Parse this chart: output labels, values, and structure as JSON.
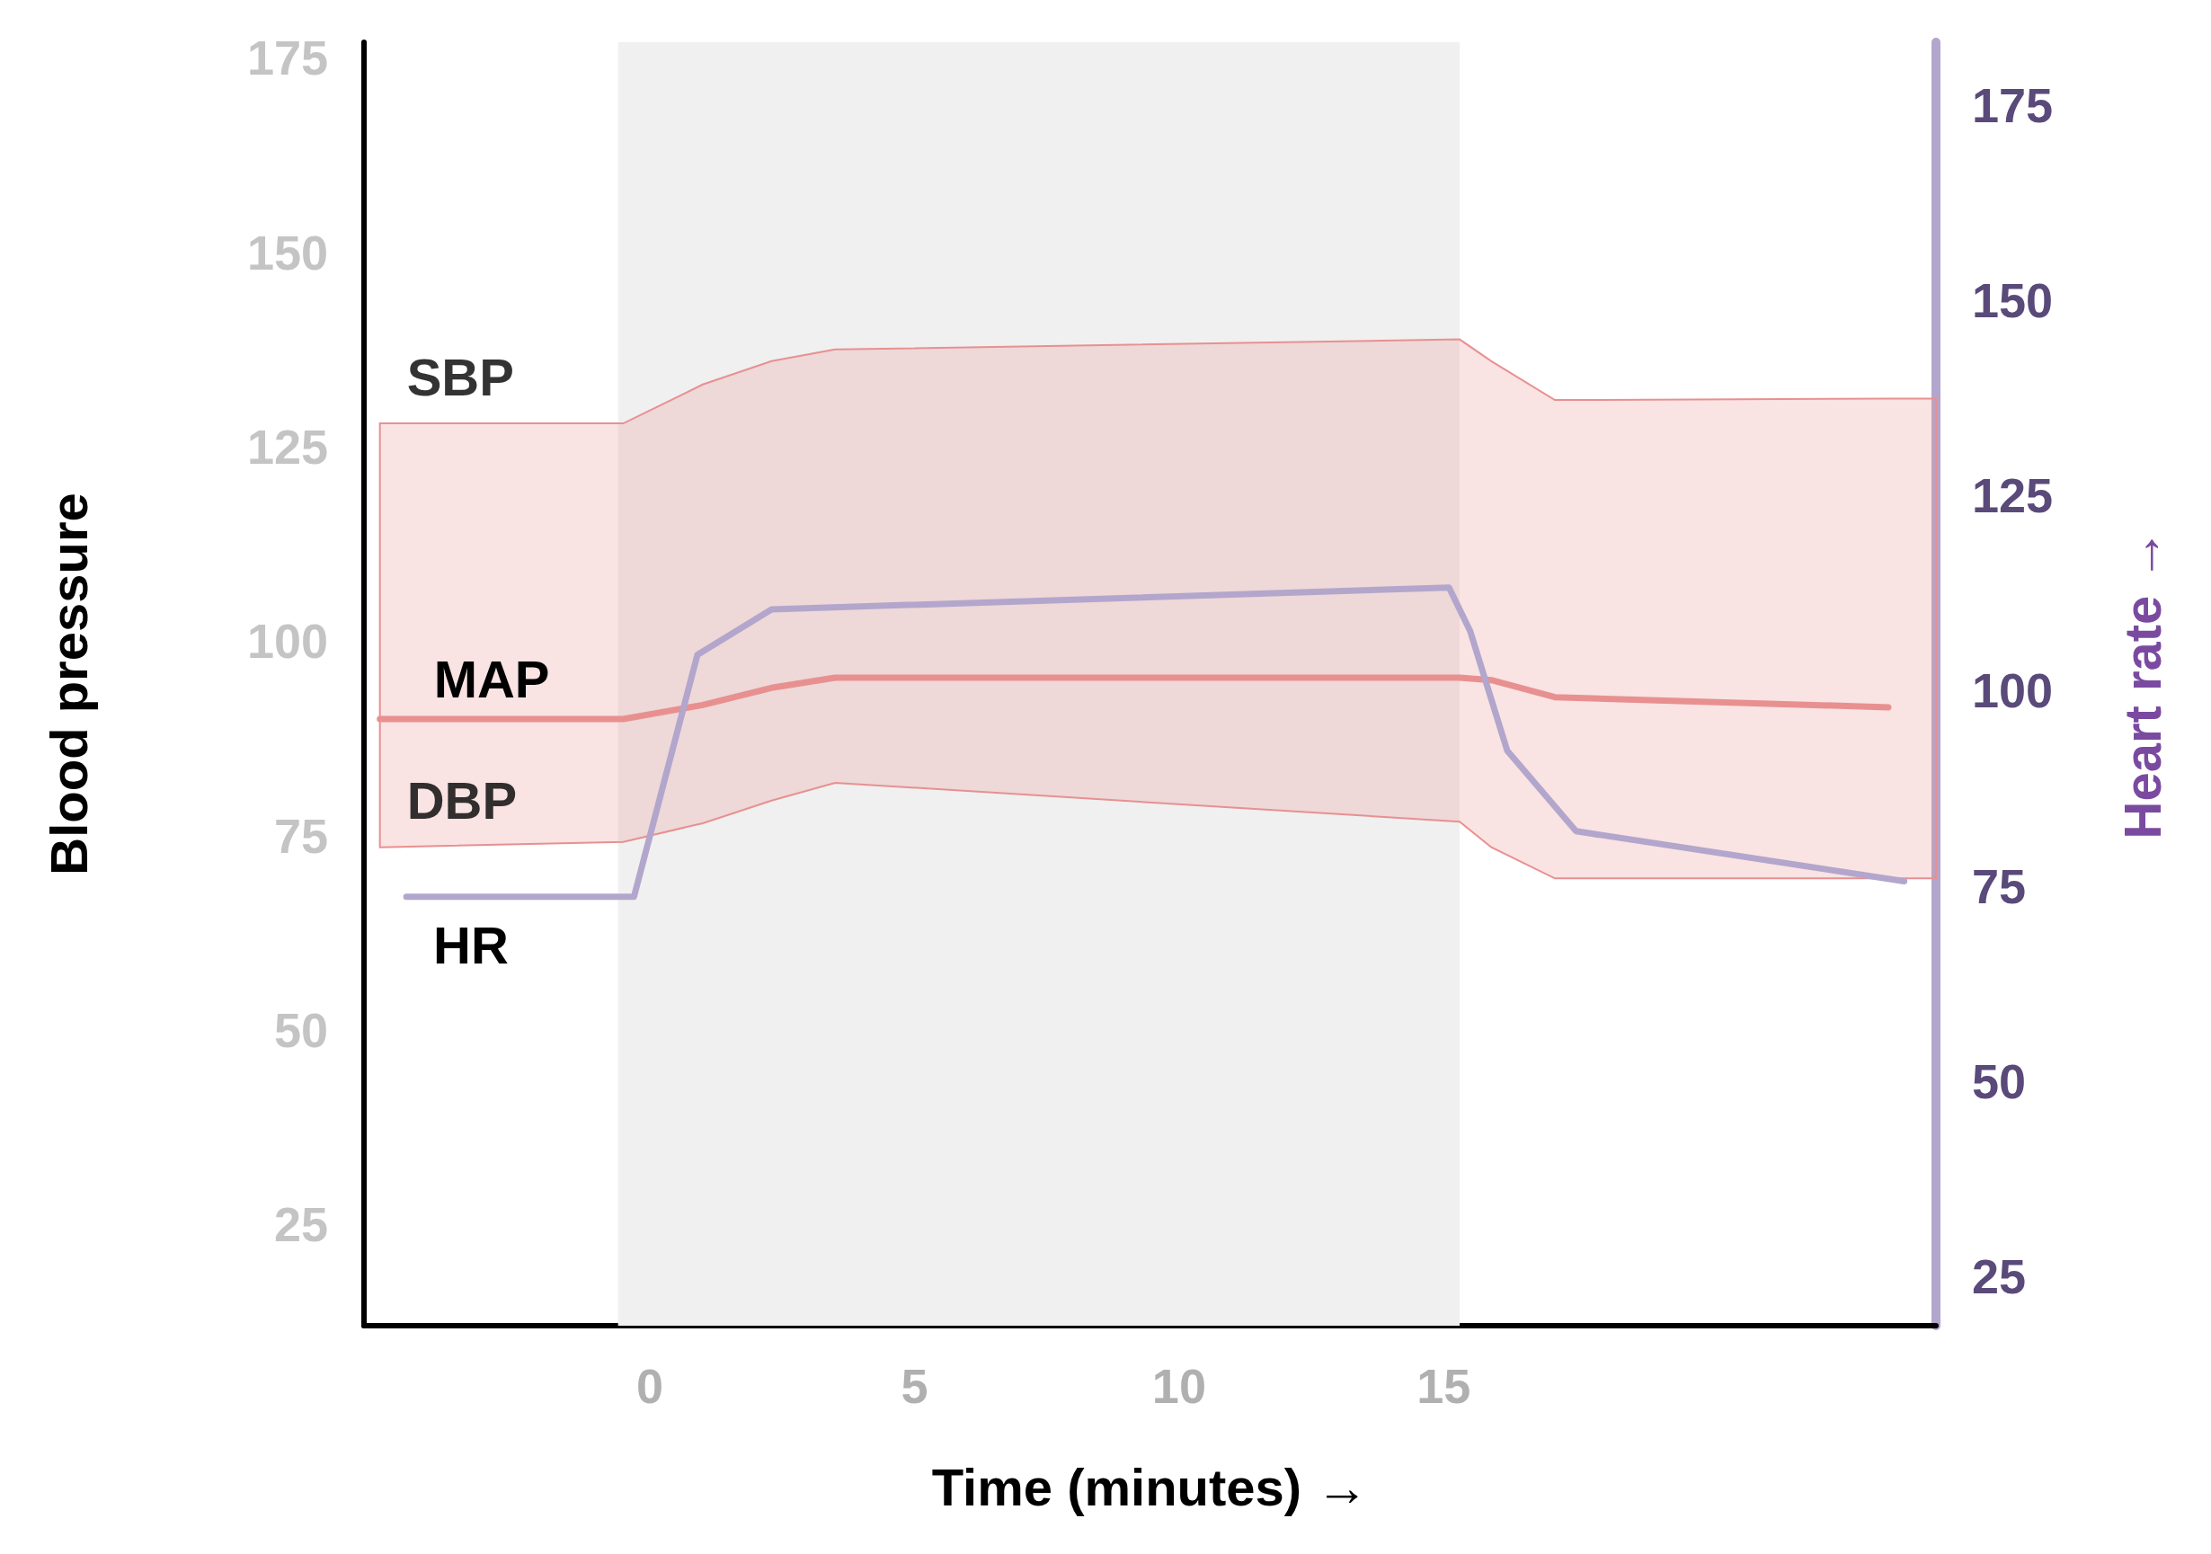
{
  "chart_data": {
    "type": "line",
    "xlabel": "Time (minutes) →",
    "ylabel": "Blood pressure",
    "y2label": "Heart rate →",
    "xlim": [
      -5.4,
      24.3
    ],
    "xticks": [
      0,
      5,
      10,
      15
    ],
    "ylim": [
      12,
      177
    ],
    "yticks": [
      25,
      50,
      75,
      100,
      125,
      150,
      175
    ],
    "y2lim": [
      18.7,
      183
    ],
    "y2ticks": [
      25,
      50,
      75,
      100,
      125,
      150,
      175
    ],
    "grid": false,
    "legend": false,
    "bands": [
      {
        "axis": "x",
        "from": -0.6,
        "to": 15.3,
        "color": "#f0f0f0"
      }
    ],
    "annotations": [
      {
        "text": "SBP",
        "x": -5.1,
        "y": 128
      },
      {
        "text": "DBP",
        "x": -5.1,
        "y": 73.5
      }
    ],
    "series": [
      {
        "name": "MAP",
        "color": "#e89090",
        "x": [
          -5.1,
          -0.5,
          1,
          2.3,
          3.5,
          15.3,
          15.9,
          17.1,
          23.4,
          24.3
        ],
        "values": [
          90,
          90,
          91.8,
          94,
          95.3,
          95.3,
          95,
          92.8,
          91.5,
          null
        ],
        "lower": [
          73.5,
          74.2,
          76.6,
          79.5,
          81.8,
          76.8,
          73.5,
          69.5,
          69.5,
          69.5
        ],
        "upper": [
          128,
          128,
          133,
          136,
          137.5,
          138.8,
          136,
          131,
          131.2,
          131.2
        ]
      },
      {
        "name": "HR",
        "color": "#b3a6cc",
        "axis": "y2",
        "x": [
          -4.6,
          -0.3,
          0.9,
          2.3,
          15.1,
          15.5,
          16.2,
          17.5,
          23.7
        ],
        "values": [
          73.6,
          73.6,
          104.6,
          110.4,
          113.2,
          107.6,
          92.3,
          82,
          75.6
        ]
      }
    ]
  }
}
